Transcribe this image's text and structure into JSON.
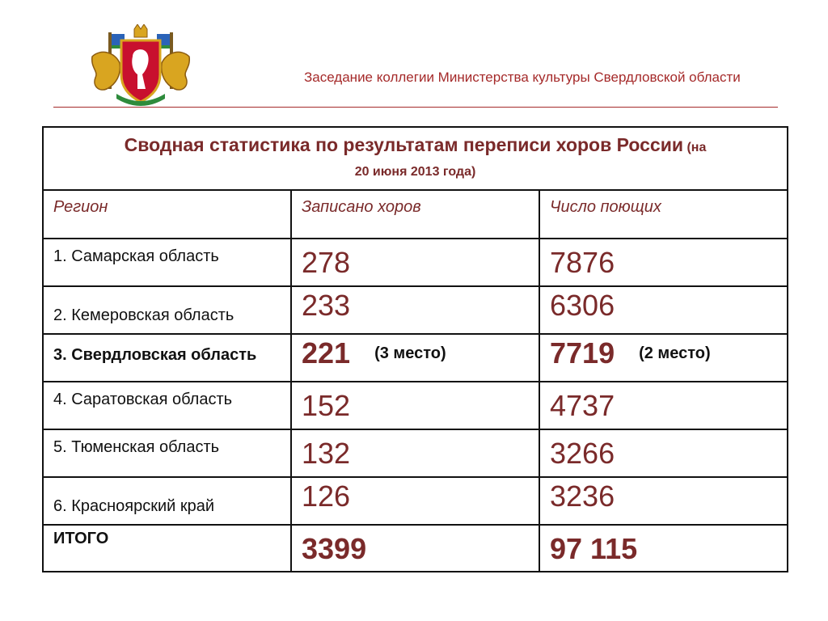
{
  "header": {
    "title": "Заседание коллегии Министерства культуры Свердловской области"
  },
  "table": {
    "caption": "Сводная статистика по результатам переписи хоров России",
    "caption_note_start": "(на",
    "caption_note_end": "20 июня 2013 года)",
    "columns": [
      "Регион",
      "Записано хоров",
      "Число поющих"
    ],
    "rows": [
      {
        "region": "1. Самарская область",
        "choirs": "278",
        "singers": "7876"
      },
      {
        "region": "2. Кемеровская область",
        "choirs": "233",
        "singers": "6306"
      },
      {
        "region": "3. Свердловская область",
        "choirs": "221",
        "choirs_place": "(3 место)",
        "singers": "7719",
        "singers_place": "(2 место)"
      },
      {
        "region": "4. Саратовская область",
        "choirs": "152",
        "singers": "4737"
      },
      {
        "region": "5. Тюменская область",
        "choirs": "132",
        "singers": "3266"
      },
      {
        "region": "6. Красноярский край",
        "choirs": "126",
        "singers": "3236"
      }
    ],
    "total": {
      "label": "ИТОГО",
      "choirs": "3399",
      "singers": "97 115"
    }
  },
  "colors": {
    "accent": "#a52a2a",
    "text_dark": "#7a2a2a",
    "border": "#111111"
  },
  "icons": {
    "emblem": "sverdlovsk-oblast-coat-of-arms-icon"
  }
}
